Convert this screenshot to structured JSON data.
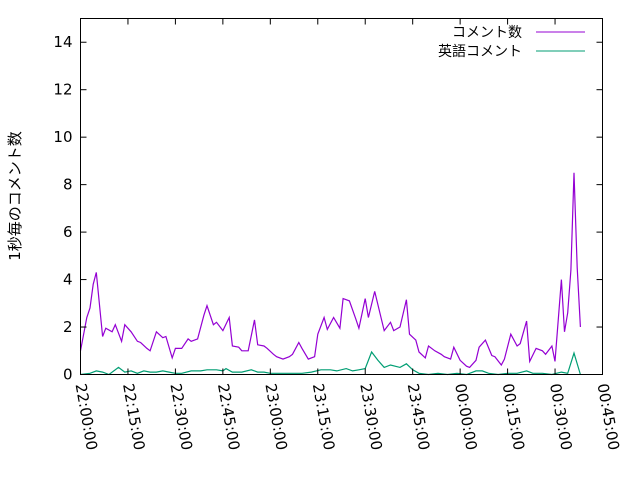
{
  "chart_data": {
    "type": "line",
    "title": "",
    "xlabel": "",
    "ylabel": "1秒毎のコメント数",
    "ylim": [
      0,
      15
    ],
    "yticks": [
      0,
      2,
      4,
      6,
      8,
      10,
      12,
      14
    ],
    "xlim": [
      "22:00:00",
      "00:45:00"
    ],
    "xticks": [
      "22:00:00",
      "22:15:00",
      "22:30:00",
      "22:45:00",
      "23:00:00",
      "23:15:00",
      "23:30:00",
      "23:45:00",
      "00:00:00",
      "00:15:00",
      "00:30:00",
      "00:45:00"
    ],
    "grid": false,
    "legend_position": "top-right",
    "series": [
      {
        "name": "コメント数",
        "color": "#9400d3",
        "points": [
          [
            "22:00",
            1.0
          ],
          [
            "22:02",
            2.4
          ],
          [
            "22:03",
            2.8
          ],
          [
            "22:04",
            3.8
          ],
          [
            "22:05",
            4.3
          ],
          [
            "22:07",
            1.6
          ],
          [
            "22:08",
            1.95
          ],
          [
            "22:10",
            1.8
          ],
          [
            "22:11",
            2.1
          ],
          [
            "22:13",
            1.4
          ],
          [
            "22:14",
            2.1
          ],
          [
            "22:16",
            1.8
          ],
          [
            "22:18",
            1.4
          ],
          [
            "22:19",
            1.35
          ],
          [
            "22:21",
            1.1
          ],
          [
            "22:22",
            1.0
          ],
          [
            "22:24",
            1.8
          ],
          [
            "22:26",
            1.55
          ],
          [
            "22:27",
            1.6
          ],
          [
            "22:29",
            0.7
          ],
          [
            "22:30",
            1.1
          ],
          [
            "22:32",
            1.1
          ],
          [
            "22:34",
            1.5
          ],
          [
            "22:35",
            1.4
          ],
          [
            "22:37",
            1.5
          ],
          [
            "22:39",
            2.5
          ],
          [
            "22:40",
            2.9
          ],
          [
            "22:42",
            2.1
          ],
          [
            "22:43",
            2.2
          ],
          [
            "22:45",
            1.85
          ],
          [
            "22:47",
            2.4
          ],
          [
            "22:48",
            1.2
          ],
          [
            "22:50",
            1.15
          ],
          [
            "22:51",
            1.0
          ],
          [
            "22:53",
            1.0
          ],
          [
            "22:55",
            2.3
          ],
          [
            "22:56",
            1.25
          ],
          [
            "22:58",
            1.2
          ],
          [
            "22:59",
            1.1
          ],
          [
            "23:01",
            0.85
          ],
          [
            "23:02",
            0.75
          ],
          [
            "23:04",
            0.65
          ],
          [
            "23:06",
            0.75
          ],
          [
            "23:07",
            0.85
          ],
          [
            "23:09",
            1.35
          ],
          [
            "23:10",
            1.1
          ],
          [
            "23:12",
            0.65
          ],
          [
            "23:14",
            0.75
          ],
          [
            "23:15",
            1.7
          ],
          [
            "23:17",
            2.4
          ],
          [
            "23:18",
            1.9
          ],
          [
            "23:20",
            2.4
          ],
          [
            "23:22",
            1.95
          ],
          [
            "23:23",
            3.2
          ],
          [
            "23:25",
            3.1
          ],
          [
            "23:27",
            2.35
          ],
          [
            "23:28",
            1.95
          ],
          [
            "23:30",
            3.2
          ],
          [
            "23:31",
            2.4
          ],
          [
            "23:33",
            3.5
          ],
          [
            "23:35",
            2.4
          ],
          [
            "23:36",
            1.85
          ],
          [
            "23:38",
            2.2
          ],
          [
            "23:39",
            1.85
          ],
          [
            "23:41",
            2.0
          ],
          [
            "23:43",
            3.15
          ],
          [
            "23:44",
            1.7
          ],
          [
            "23:46",
            1.45
          ],
          [
            "23:47",
            0.95
          ],
          [
            "23:49",
            0.7
          ],
          [
            "23:50",
            1.2
          ],
          [
            "23:52",
            1.0
          ],
          [
            "23:54",
            0.85
          ],
          [
            "23:55",
            0.75
          ],
          [
            "23:57",
            0.65
          ],
          [
            "23:58",
            1.15
          ],
          [
            "00:00",
            0.6
          ],
          [
            "00:02",
            0.35
          ],
          [
            "00:03",
            0.3
          ],
          [
            "00:05",
            0.6
          ],
          [
            "00:06",
            1.15
          ],
          [
            "00:08",
            1.45
          ],
          [
            "00:10",
            0.8
          ],
          [
            "00:11",
            0.75
          ],
          [
            "00:13",
            0.4
          ],
          [
            "00:14",
            0.65
          ],
          [
            "00:16",
            1.7
          ],
          [
            "00:18",
            1.2
          ],
          [
            "00:19",
            1.3
          ],
          [
            "00:21",
            2.25
          ],
          [
            "00:22",
            0.55
          ],
          [
            "00:24",
            1.1
          ],
          [
            "00:26",
            1.0
          ],
          [
            "00:27",
            0.85
          ],
          [
            "00:29",
            1.2
          ],
          [
            "00:30",
            0.55
          ],
          [
            "00:32",
            4.0
          ],
          [
            "00:33",
            1.8
          ],
          [
            "00:34",
            2.6
          ],
          [
            "00:35",
            4.4
          ],
          [
            "00:36",
            8.5
          ],
          [
            "00:37",
            4.5
          ],
          [
            "00:38",
            2.0
          ]
        ]
      },
      {
        "name": "英語コメント",
        "color": "#009e73",
        "points": [
          [
            "22:00",
            0.0
          ],
          [
            "22:03",
            0.05
          ],
          [
            "22:05",
            0.15
          ],
          [
            "22:07",
            0.1
          ],
          [
            "22:09",
            0.0
          ],
          [
            "22:12",
            0.3
          ],
          [
            "22:14",
            0.1
          ],
          [
            "22:16",
            0.15
          ],
          [
            "22:18",
            0.05
          ],
          [
            "22:20",
            0.15
          ],
          [
            "22:22",
            0.1
          ],
          [
            "22:24",
            0.1
          ],
          [
            "22:26",
            0.15
          ],
          [
            "22:28",
            0.1
          ],
          [
            "22:30",
            0.05
          ],
          [
            "22:32",
            0.05
          ],
          [
            "22:35",
            0.15
          ],
          [
            "22:38",
            0.15
          ],
          [
            "22:40",
            0.2
          ],
          [
            "22:43",
            0.2
          ],
          [
            "22:45",
            0.15
          ],
          [
            "22:46",
            0.25
          ],
          [
            "22:48",
            0.1
          ],
          [
            "22:51",
            0.1
          ],
          [
            "22:54",
            0.2
          ],
          [
            "22:56",
            0.1
          ],
          [
            "22:58",
            0.1
          ],
          [
            "23:00",
            0.05
          ],
          [
            "23:04",
            0.05
          ],
          [
            "23:07",
            0.05
          ],
          [
            "23:10",
            0.05
          ],
          [
            "23:13",
            0.1
          ],
          [
            "23:16",
            0.2
          ],
          [
            "23:19",
            0.2
          ],
          [
            "23:21",
            0.15
          ],
          [
            "23:24",
            0.25
          ],
          [
            "23:26",
            0.15
          ],
          [
            "23:28",
            0.2
          ],
          [
            "23:30",
            0.25
          ],
          [
            "23:32",
            0.95
          ],
          [
            "23:34",
            0.6
          ],
          [
            "23:36",
            0.3
          ],
          [
            "23:38",
            0.4
          ],
          [
            "23:41",
            0.3
          ],
          [
            "23:43",
            0.45
          ],
          [
            "23:45",
            0.2
          ],
          [
            "23:47",
            0.05
          ],
          [
            "23:50",
            0.0
          ],
          [
            "23:53",
            0.05
          ],
          [
            "23:56",
            0.0
          ],
          [
            "23:59",
            0.05
          ],
          [
            "00:02",
            0.0
          ],
          [
            "00:05",
            0.15
          ],
          [
            "00:07",
            0.15
          ],
          [
            "00:09",
            0.05
          ],
          [
            "00:12",
            0.0
          ],
          [
            "00:15",
            0.05
          ],
          [
            "00:18",
            0.05
          ],
          [
            "00:21",
            0.15
          ],
          [
            "00:23",
            0.05
          ],
          [
            "00:26",
            0.05
          ],
          [
            "00:29",
            0.0
          ],
          [
            "00:32",
            0.1
          ],
          [
            "00:34",
            0.05
          ],
          [
            "00:36",
            0.9
          ],
          [
            "00:38",
            0.0
          ]
        ]
      }
    ]
  }
}
